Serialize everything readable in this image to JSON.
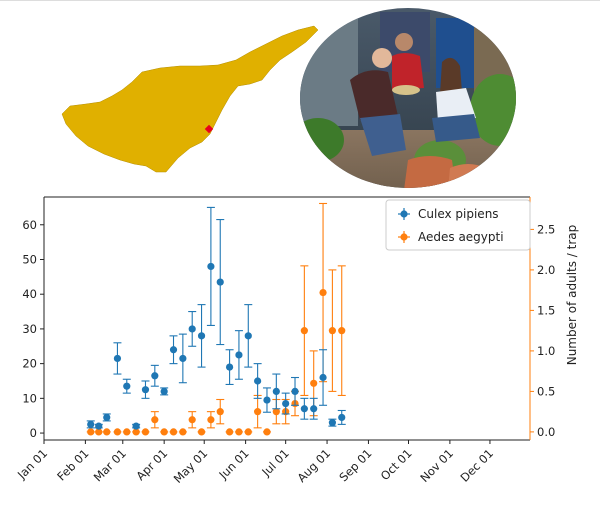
{
  "chart_data": {
    "type": "scatter",
    "title": "",
    "xlabel": "",
    "ylabel": "",
    "y2label": "Number of adults / trap",
    "x_ticks": [
      "Jan 01",
      "Feb 01",
      "Mar 01",
      "Apr 01",
      "May 01",
      "Jun 01",
      "Jul 01",
      "Aug 01",
      "Sep 01",
      "Oct 01",
      "Nov 01",
      "Dec 01"
    ],
    "x_range": [
      "Jan 01",
      "Dec 31"
    ],
    "ylim": [
      -2,
      68
    ],
    "y_ticks": [
      0,
      10,
      20,
      30,
      40,
      50,
      60
    ],
    "y2lim": [
      -0.1,
      2.9
    ],
    "y2_ticks": [
      "0.0",
      "0.5",
      "1.0",
      "1.5",
      "2.0",
      "2.5"
    ],
    "y2_tick_values": [
      0,
      0.5,
      1.0,
      1.5,
      2.0,
      2.5
    ],
    "legend_position": "top-right",
    "grid": false,
    "series": [
      {
        "name": "Culex pipiens",
        "axis": "left",
        "color": "#1f77b4",
        "points": [
          {
            "date": "Feb 05",
            "y": 2.5,
            "err": 1.0
          },
          {
            "date": "Feb 11",
            "y": 2.0,
            "err": 0.5
          },
          {
            "date": "Feb 17",
            "y": 4.5,
            "err": 1.0
          },
          {
            "date": "Feb 25",
            "y": 21.5,
            "err": 4.5
          },
          {
            "date": "Mar 04",
            "y": 13.5,
            "err": 2.0
          },
          {
            "date": "Mar 11",
            "y": 2.0,
            "err": 0.5
          },
          {
            "date": "Mar 18",
            "y": 12.5,
            "err": 2.5
          },
          {
            "date": "Mar 25",
            "y": 16.5,
            "err": 3.0
          },
          {
            "date": "Apr 01",
            "y": 12.0,
            "err": 1.0
          },
          {
            "date": "Apr 08",
            "y": 24.0,
            "err": 4.0
          },
          {
            "date": "Apr 15",
            "y": 21.5,
            "err": 7.0
          },
          {
            "date": "Apr 22",
            "y": 30.0,
            "err": 5.0
          },
          {
            "date": "Apr 29",
            "y": 28.0,
            "err": 9.0
          },
          {
            "date": "May 06",
            "y": 48.0,
            "err": 17.0
          },
          {
            "date": "May 13",
            "y": 43.5,
            "err": 18.0
          },
          {
            "date": "May 20",
            "y": 19.0,
            "err": 5.0
          },
          {
            "date": "May 27",
            "y": 22.5,
            "err": 7.0
          },
          {
            "date": "Jun 03",
            "y": 28.0,
            "err": 9.0
          },
          {
            "date": "Jun 10",
            "y": 15.0,
            "err": 5.0
          },
          {
            "date": "Jun 17",
            "y": 9.5,
            "err": 3.5
          },
          {
            "date": "Jun 24",
            "y": 12.0,
            "err": 5.0
          },
          {
            "date": "Jul 01",
            "y": 8.5,
            "err": 3.0
          },
          {
            "date": "Jul 08",
            "y": 12.0,
            "err": 4.0
          },
          {
            "date": "Jul 15",
            "y": 7.0,
            "err": 3.0
          },
          {
            "date": "Jul 22",
            "y": 7.0,
            "err": 3.0
          },
          {
            "date": "Jul 29",
            "y": 16.0,
            "err": 8.0
          },
          {
            "date": "Aug 05",
            "y": 3.0,
            "err": 1.0
          },
          {
            "date": "Aug 12",
            "y": 4.5,
            "err": 2.0
          }
        ]
      },
      {
        "name": "Aedes aegypti",
        "axis": "right",
        "color": "#ff7f0e",
        "points": [
          {
            "date": "Feb 05",
            "y": 0.0,
            "err": 0.0
          },
          {
            "date": "Feb 11",
            "y": 0.0,
            "err": 0.0
          },
          {
            "date": "Feb 17",
            "y": 0.0,
            "err": 0.0
          },
          {
            "date": "Feb 25",
            "y": 0.0,
            "err": 0.0
          },
          {
            "date": "Mar 04",
            "y": 0.0,
            "err": 0.0
          },
          {
            "date": "Mar 11",
            "y": 0.0,
            "err": 0.0
          },
          {
            "date": "Mar 18",
            "y": 0.0,
            "err": 0.0
          },
          {
            "date": "Mar 25",
            "y": 0.15,
            "err": 0.1
          },
          {
            "date": "Apr 01",
            "y": 0.0,
            "err": 0.0
          },
          {
            "date": "Apr 08",
            "y": 0.0,
            "err": 0.0
          },
          {
            "date": "Apr 15",
            "y": 0.0,
            "err": 0.0
          },
          {
            "date": "Apr 22",
            "y": 0.15,
            "err": 0.1
          },
          {
            "date": "Apr 29",
            "y": 0.0,
            "err": 0.0
          },
          {
            "date": "May 06",
            "y": 0.15,
            "err": 0.1
          },
          {
            "date": "May 13",
            "y": 0.25,
            "err": 0.15
          },
          {
            "date": "May 20",
            "y": 0.0,
            "err": 0.0
          },
          {
            "date": "May 27",
            "y": 0.0,
            "err": 0.0
          },
          {
            "date": "Jun 03",
            "y": 0.0,
            "err": 0.0
          },
          {
            "date": "Jun 10",
            "y": 0.25,
            "err": 0.2
          },
          {
            "date": "Jun 17",
            "y": 0.0,
            "err": 0.0
          },
          {
            "date": "Jun 24",
            "y": 0.25,
            "err": 0.15
          },
          {
            "date": "Jul 01",
            "y": 0.25,
            "err": 0.15
          },
          {
            "date": "Jul 08",
            "y": 0.35,
            "err": 0.15
          },
          {
            "date": "Jul 15",
            "y": 1.25,
            "err": 0.8
          },
          {
            "date": "Jul 22",
            "y": 0.6,
            "err": 0.4
          },
          {
            "date": "Jul 29",
            "y": 1.72,
            "err": 1.1
          },
          {
            "date": "Aug 05",
            "y": 1.25,
            "err": 0.75
          },
          {
            "date": "Aug 12",
            "y": 1.25,
            "err": 0.8
          }
        ]
      }
    ]
  },
  "colors": {
    "map_fill": "#e0b000",
    "map_marker": "#e8001c",
    "axis": "#222222"
  },
  "illustrations": {
    "map": "cyprus-map",
    "marker": "location-marker",
    "photo": "field-team-photo"
  }
}
